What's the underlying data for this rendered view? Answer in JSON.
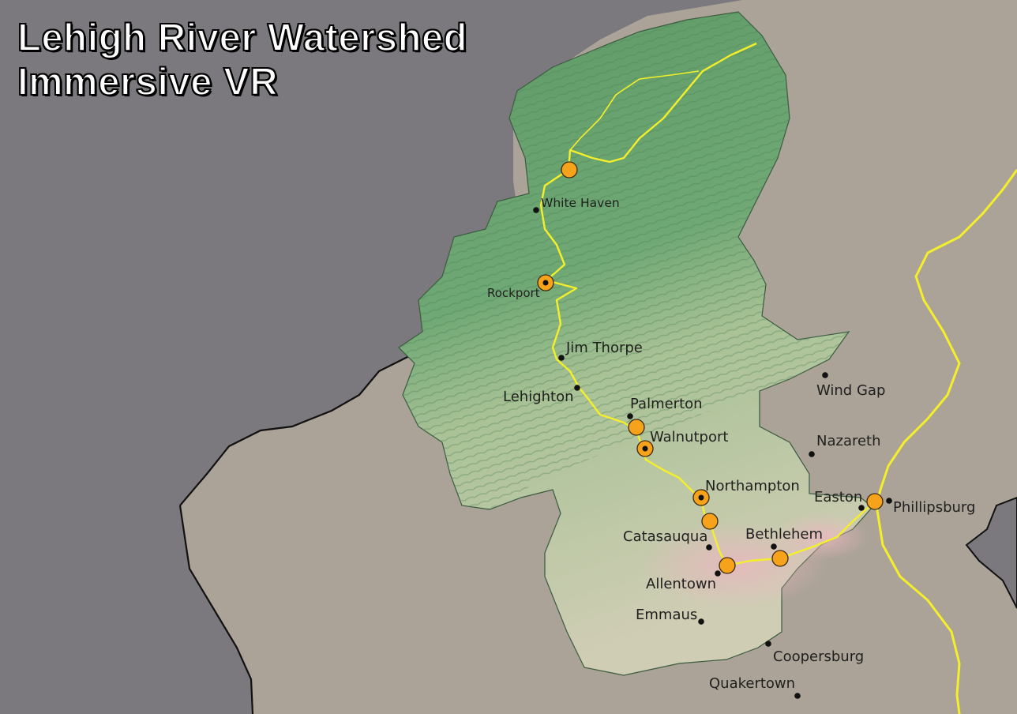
{
  "title": {
    "line1": "Lehigh River Watershed",
    "line2": "Immersive VR"
  },
  "colors": {
    "outside_dark": "#7b797d",
    "outside_light": "#aba397",
    "watershed_green": "#6fa874",
    "watershed_light": "#c9d5b5",
    "river": "#f4ef2a",
    "site_marker": "#f7a21b"
  },
  "towns": [
    {
      "id": "white-haven",
      "name": "White Haven"
    },
    {
      "id": "rockport",
      "name": "Rockport"
    },
    {
      "id": "jim-thorpe",
      "name": "Jim Thorpe"
    },
    {
      "id": "lehighton",
      "name": "Lehighton"
    },
    {
      "id": "palmerton",
      "name": "Palmerton"
    },
    {
      "id": "walnutport",
      "name": "Walnutport"
    },
    {
      "id": "northampton",
      "name": "Northampton"
    },
    {
      "id": "catasauqua",
      "name": "Catasauqua"
    },
    {
      "id": "bethlehem",
      "name": "Bethlehem"
    },
    {
      "id": "allentown",
      "name": "Allentown"
    },
    {
      "id": "emmaus",
      "name": "Emmaus"
    },
    {
      "id": "coopersburg",
      "name": "Coopersburg"
    },
    {
      "id": "quakertown",
      "name": "Quakertown"
    },
    {
      "id": "wind-gap",
      "name": "Wind Gap"
    },
    {
      "id": "nazareth",
      "name": "Nazareth"
    },
    {
      "id": "easton",
      "name": "Easton"
    },
    {
      "id": "phillipsburg",
      "name": "Phillipsburg"
    }
  ]
}
